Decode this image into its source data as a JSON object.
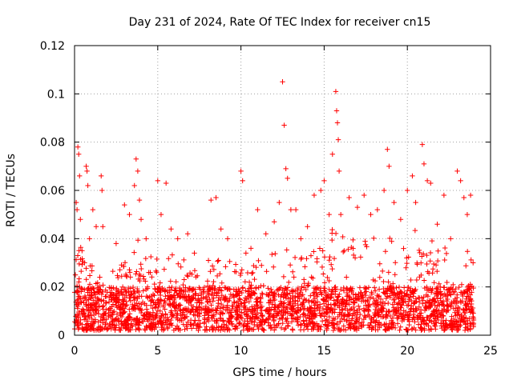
{
  "chart_data": {
    "type": "scatter",
    "title": "Day 231 of 2024, Rate Of TEC Index for receiver cn15",
    "xlabel": "GPS time / hours",
    "ylabel": "ROTI / TECUs",
    "xlim": [
      0,
      25
    ],
    "ylim": [
      0,
      0.12
    ],
    "x_ticks": [
      0,
      5,
      10,
      15,
      20,
      25
    ],
    "x_tick_labels": [
      "0",
      "5",
      "10",
      "15",
      "20",
      "25"
    ],
    "y_ticks": [
      0,
      0.02,
      0.04,
      0.06,
      0.08,
      0.1,
      0.12
    ],
    "y_tick_labels": [
      "0",
      "0.02",
      "0.04",
      "0.06",
      "0.08",
      "0.1",
      "0.12"
    ],
    "grid": true,
    "marker": "+",
    "series": [
      {
        "name": "cn15",
        "color": "#ff0000",
        "points": [
          [
            0.05,
            0.025
          ],
          [
            0.1,
            0.055
          ],
          [
            0.15,
            0.052
          ],
          [
            0.2,
            0.078
          ],
          [
            0.25,
            0.075
          ],
          [
            0.3,
            0.066
          ],
          [
            0.35,
            0.048
          ],
          [
            0.45,
            0.035
          ],
          [
            0.6,
            0.03
          ],
          [
            0.7,
            0.07
          ],
          [
            0.75,
            0.068
          ],
          [
            0.8,
            0.062
          ],
          [
            0.9,
            0.04
          ],
          [
            1.1,
            0.052
          ],
          [
            1.3,
            0.045
          ],
          [
            1.6,
            0.066
          ],
          [
            1.65,
            0.06
          ],
          [
            1.7,
            0.045
          ],
          [
            2.5,
            0.038
          ],
          [
            3.0,
            0.054
          ],
          [
            3.3,
            0.05
          ],
          [
            3.6,
            0.062
          ],
          [
            3.7,
            0.073
          ],
          [
            3.8,
            0.068
          ],
          [
            3.9,
            0.056
          ],
          [
            4.0,
            0.048
          ],
          [
            4.3,
            0.04
          ],
          [
            5.0,
            0.064
          ],
          [
            5.2,
            0.05
          ],
          [
            5.5,
            0.063
          ],
          [
            5.8,
            0.044
          ],
          [
            6.2,
            0.04
          ],
          [
            6.8,
            0.042
          ],
          [
            7.2,
            0.034
          ],
          [
            8.2,
            0.056
          ],
          [
            8.5,
            0.057
          ],
          [
            8.8,
            0.044
          ],
          [
            9.2,
            0.04
          ],
          [
            10.0,
            0.068
          ],
          [
            10.1,
            0.064
          ],
          [
            10.3,
            0.034
          ],
          [
            10.6,
            0.036
          ],
          [
            11.0,
            0.052
          ],
          [
            11.5,
            0.042
          ],
          [
            12.0,
            0.047
          ],
          [
            12.3,
            0.055
          ],
          [
            12.5,
            0.105
          ],
          [
            12.6,
            0.087
          ],
          [
            12.7,
            0.069
          ],
          [
            12.8,
            0.065
          ],
          [
            13.0,
            0.052
          ],
          [
            13.3,
            0.052
          ],
          [
            13.6,
            0.04
          ],
          [
            14.0,
            0.045
          ],
          [
            14.4,
            0.058
          ],
          [
            14.8,
            0.06
          ],
          [
            15.0,
            0.064
          ],
          [
            15.3,
            0.05
          ],
          [
            15.5,
            0.075
          ],
          [
            15.7,
            0.101
          ],
          [
            15.75,
            0.093
          ],
          [
            15.8,
            0.088
          ],
          [
            15.85,
            0.081
          ],
          [
            15.9,
            0.068
          ],
          [
            16.0,
            0.05
          ],
          [
            16.5,
            0.057
          ],
          [
            17.0,
            0.053
          ],
          [
            17.4,
            0.058
          ],
          [
            17.8,
            0.05
          ],
          [
            18.2,
            0.052
          ],
          [
            18.6,
            0.06
          ],
          [
            18.8,
            0.077
          ],
          [
            18.9,
            0.07
          ],
          [
            19.2,
            0.055
          ],
          [
            19.6,
            0.048
          ],
          [
            20.0,
            0.06
          ],
          [
            20.3,
            0.066
          ],
          [
            20.5,
            0.055
          ],
          [
            20.9,
            0.079
          ],
          [
            21.0,
            0.071
          ],
          [
            21.2,
            0.064
          ],
          [
            21.4,
            0.063
          ],
          [
            21.8,
            0.046
          ],
          [
            22.2,
            0.058
          ],
          [
            22.6,
            0.04
          ],
          [
            23.0,
            0.068
          ],
          [
            23.2,
            0.064
          ],
          [
            23.4,
            0.057
          ],
          [
            23.6,
            0.05
          ],
          [
            23.8,
            0.058
          ],
          [
            23.95,
            0.03
          ]
        ]
      }
    ],
    "dense_band": {
      "description_hidden": "",
      "x_range": [
        0,
        24
      ],
      "base_min": 0.002,
      "base_max": 0.02,
      "envelope": [
        [
          0,
          0.035
        ],
        [
          0.5,
          0.04
        ],
        [
          1,
          0.03
        ],
        [
          2,
          0.025
        ],
        [
          3,
          0.03
        ],
        [
          3.8,
          0.04
        ],
        [
          4.5,
          0.035
        ],
        [
          5.5,
          0.035
        ],
        [
          7,
          0.03
        ],
        [
          8.5,
          0.035
        ],
        [
          9.5,
          0.03
        ],
        [
          10.5,
          0.03
        ],
        [
          11.5,
          0.035
        ],
        [
          12.5,
          0.04
        ],
        [
          13.5,
          0.035
        ],
        [
          14.5,
          0.035
        ],
        [
          15.5,
          0.045
        ],
        [
          16.5,
          0.04
        ],
        [
          17.5,
          0.04
        ],
        [
          18.5,
          0.045
        ],
        [
          19.5,
          0.035
        ],
        [
          20.5,
          0.045
        ],
        [
          21.5,
          0.04
        ],
        [
          22.5,
          0.035
        ],
        [
          23.5,
          0.04
        ],
        [
          24,
          0.03
        ]
      ]
    }
  }
}
